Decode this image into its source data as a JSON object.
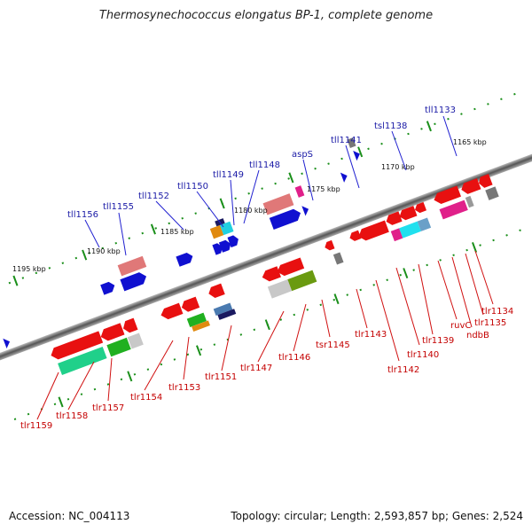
{
  "title": "Thermosynechococcus elongatus BP-1, complete genome",
  "accession_label": "Accession: NC_004113",
  "topology_label": "Topology: circular; Length: 2,593,857 bp; Genes: 2,524",
  "colors": {
    "top_label": "#1a1aa6",
    "bottom_label": "#c40000",
    "backbone": "#777777",
    "tick": "#1a8f1a"
  },
  "scale": {
    "ticks": [
      "1165 kbp",
      "1170 kbp",
      "1175 kbp",
      "1180 kbp",
      "1185 kbp",
      "1190 kbp",
      "1195 kbp"
    ]
  },
  "forward_genes": [
    {
      "name": "tll1133"
    },
    {
      "name": "tsl1138"
    },
    {
      "name": "tll1141"
    },
    {
      "name": "aspS"
    },
    {
      "name": "tll1148"
    },
    {
      "name": "tll1149"
    },
    {
      "name": "tll1150"
    },
    {
      "name": "tll1152"
    },
    {
      "name": "tll1155"
    },
    {
      "name": "tll1156"
    }
  ],
  "reverse_genes": [
    {
      "name": "tlr1134"
    },
    {
      "name": "tlr1135"
    },
    {
      "name": "ndbB"
    },
    {
      "name": "ruvC"
    },
    {
      "name": "tlr1139"
    },
    {
      "name": "tlr1140"
    },
    {
      "name": "tlr1142"
    },
    {
      "name": "tlr1143"
    },
    {
      "name": "tsr1145"
    },
    {
      "name": "tlr1146"
    },
    {
      "name": "tlr1147"
    },
    {
      "name": "tlr1151"
    },
    {
      "name": "tlr1153"
    },
    {
      "name": "tlr1154"
    },
    {
      "name": "tlr1157"
    },
    {
      "name": "tlr1158"
    },
    {
      "name": "tlr1159"
    }
  ]
}
